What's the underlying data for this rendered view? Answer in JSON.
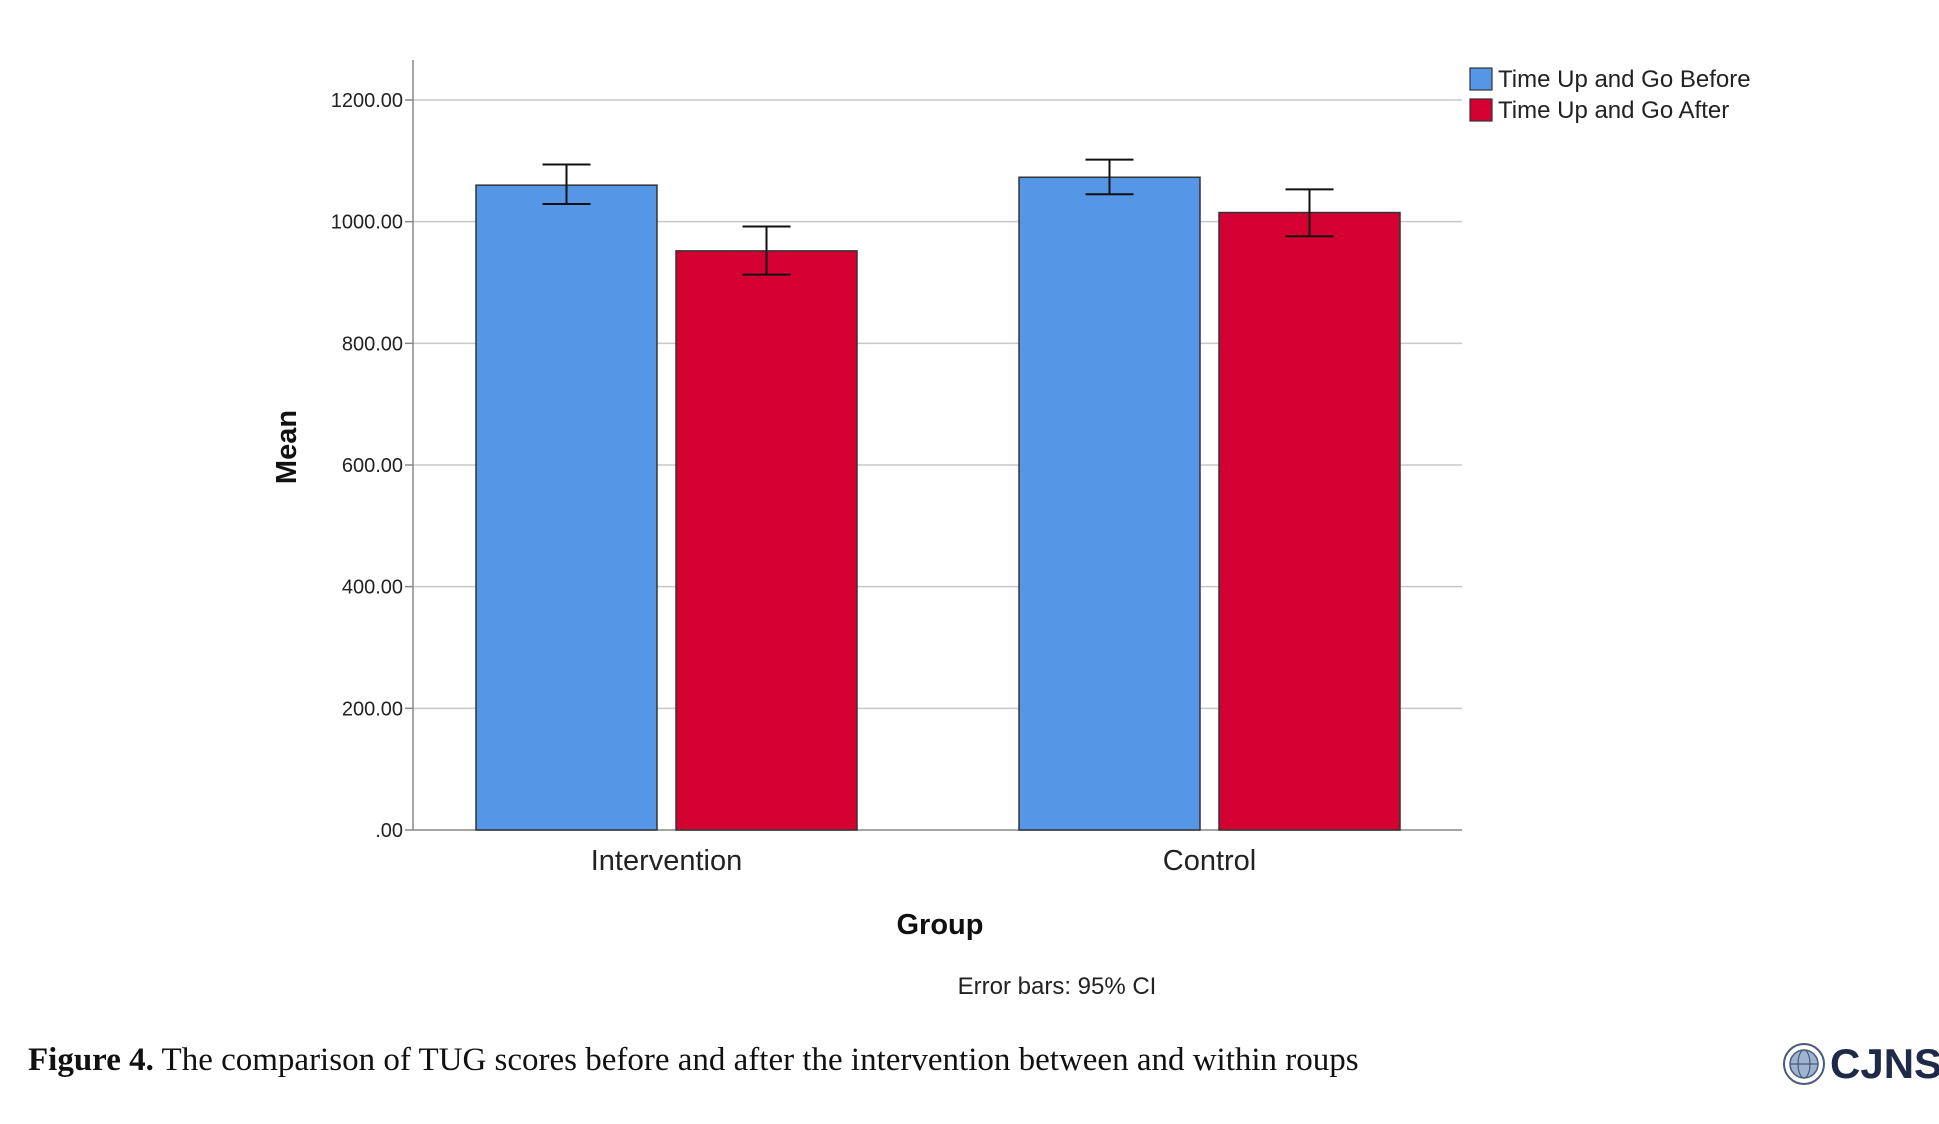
{
  "chart_data": {
    "type": "bar",
    "categories": [
      "Intervention",
      "Control"
    ],
    "series": [
      {
        "name": "Time Up and Go Before",
        "color": "#5596e6",
        "values": [
          1060,
          1073
        ],
        "ci_low": [
          1029,
          1045
        ],
        "ci_high": [
          1094,
          1102
        ]
      },
      {
        "name": "Time Up and Go After",
        "color": "#d50032",
        "values": [
          952,
          1015
        ],
        "ci_low": [
          913,
          976
        ],
        "ci_high": [
          992,
          1053
        ]
      }
    ],
    "xlabel": "Group",
    "ylabel": "Mean",
    "ylim": [
      0,
      1200
    ],
    "yticks": [
      0,
      200,
      400,
      600,
      800,
      1000,
      1200
    ],
    "ytick_labels": [
      ".00",
      "200.00",
      "400.00",
      "600.00",
      "800.00",
      "1000.00",
      "1200.00"
    ],
    "grid": true,
    "legend_position": "top-right",
    "note": "Error bars: 95% CI"
  },
  "caption": {
    "label": "Figure 4.",
    "text": "The comparison of TUG scores before and after the intervention between and within roups"
  },
  "logo": {
    "text": "CJNS",
    "icon": "globe-seal-icon"
  }
}
